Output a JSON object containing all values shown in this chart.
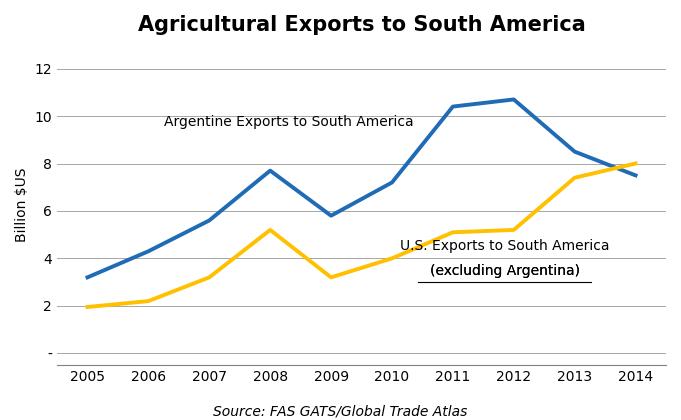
{
  "title": "Agricultural Exports to South America",
  "years": [
    2005,
    2006,
    2007,
    2008,
    2009,
    2010,
    2011,
    2012,
    2013,
    2014
  ],
  "argentina_exports": [
    3.2,
    4.3,
    5.6,
    7.7,
    5.8,
    7.2,
    10.4,
    10.7,
    8.5,
    7.5
  ],
  "us_exports": [
    1.95,
    2.2,
    3.2,
    5.2,
    3.2,
    4.0,
    5.1,
    5.2,
    7.4,
    8.0
  ],
  "argentina_color": "#1F6BB5",
  "us_color": "#FFC000",
  "argentina_label": "Argentine Exports to South America",
  "us_label_line1": "U.S. Exports to South America",
  "us_label_line2": "(excluding Argentina)",
  "ylabel": "Billion $US",
  "source": "Source: FAS GATS/Global Trade Atlas",
  "ylim_min": -0.5,
  "ylim_max": 13.0,
  "yticks": [
    0,
    2,
    4,
    6,
    8,
    10,
    12
  ],
  "ytick_labels": [
    "-",
    "2",
    "4",
    "6",
    "8",
    "10",
    "12"
  ],
  "line_width": 2.8,
  "title_fontsize": 15,
  "label_fontsize": 10,
  "source_fontsize": 10,
  "ylabel_fontsize": 10
}
